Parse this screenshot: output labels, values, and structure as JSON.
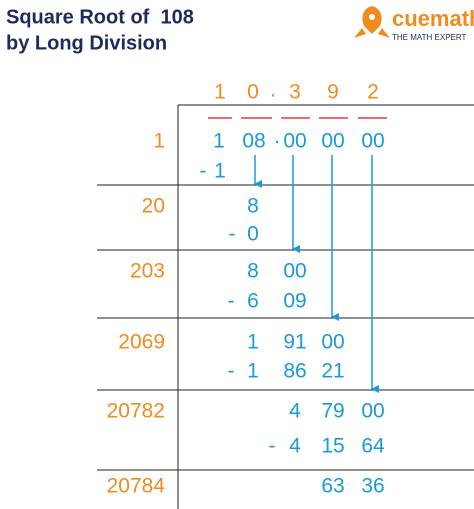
{
  "header": {
    "title": [
      "Square Root of  108",
      "by Long Division"
    ],
    "logo": {
      "brand": "cuemath",
      "tagline": "THE MATH EXPERT"
    }
  },
  "quotient": [
    "1",
    "0",
    ".",
    "3",
    "9",
    "2"
  ],
  "divisors": [
    "1",
    "20",
    "203",
    "2069",
    "20782",
    "20784"
  ],
  "rows": [
    [
      "1",
      "08",
      "·",
      "00",
      "00",
      "00"
    ],
    [
      "-",
      "1"
    ],
    [
      "8"
    ],
    [
      "-",
      "0"
    ],
    [
      "8",
      "00"
    ],
    [
      "-",
      "6",
      "09"
    ],
    [
      "1",
      "91",
      "00"
    ],
    [
      "-",
      "1",
      "86",
      "21"
    ],
    [
      "4",
      "79",
      "00"
    ],
    [
      "-",
      "4",
      "15",
      "64"
    ],
    [
      "63",
      "36"
    ]
  ]
}
